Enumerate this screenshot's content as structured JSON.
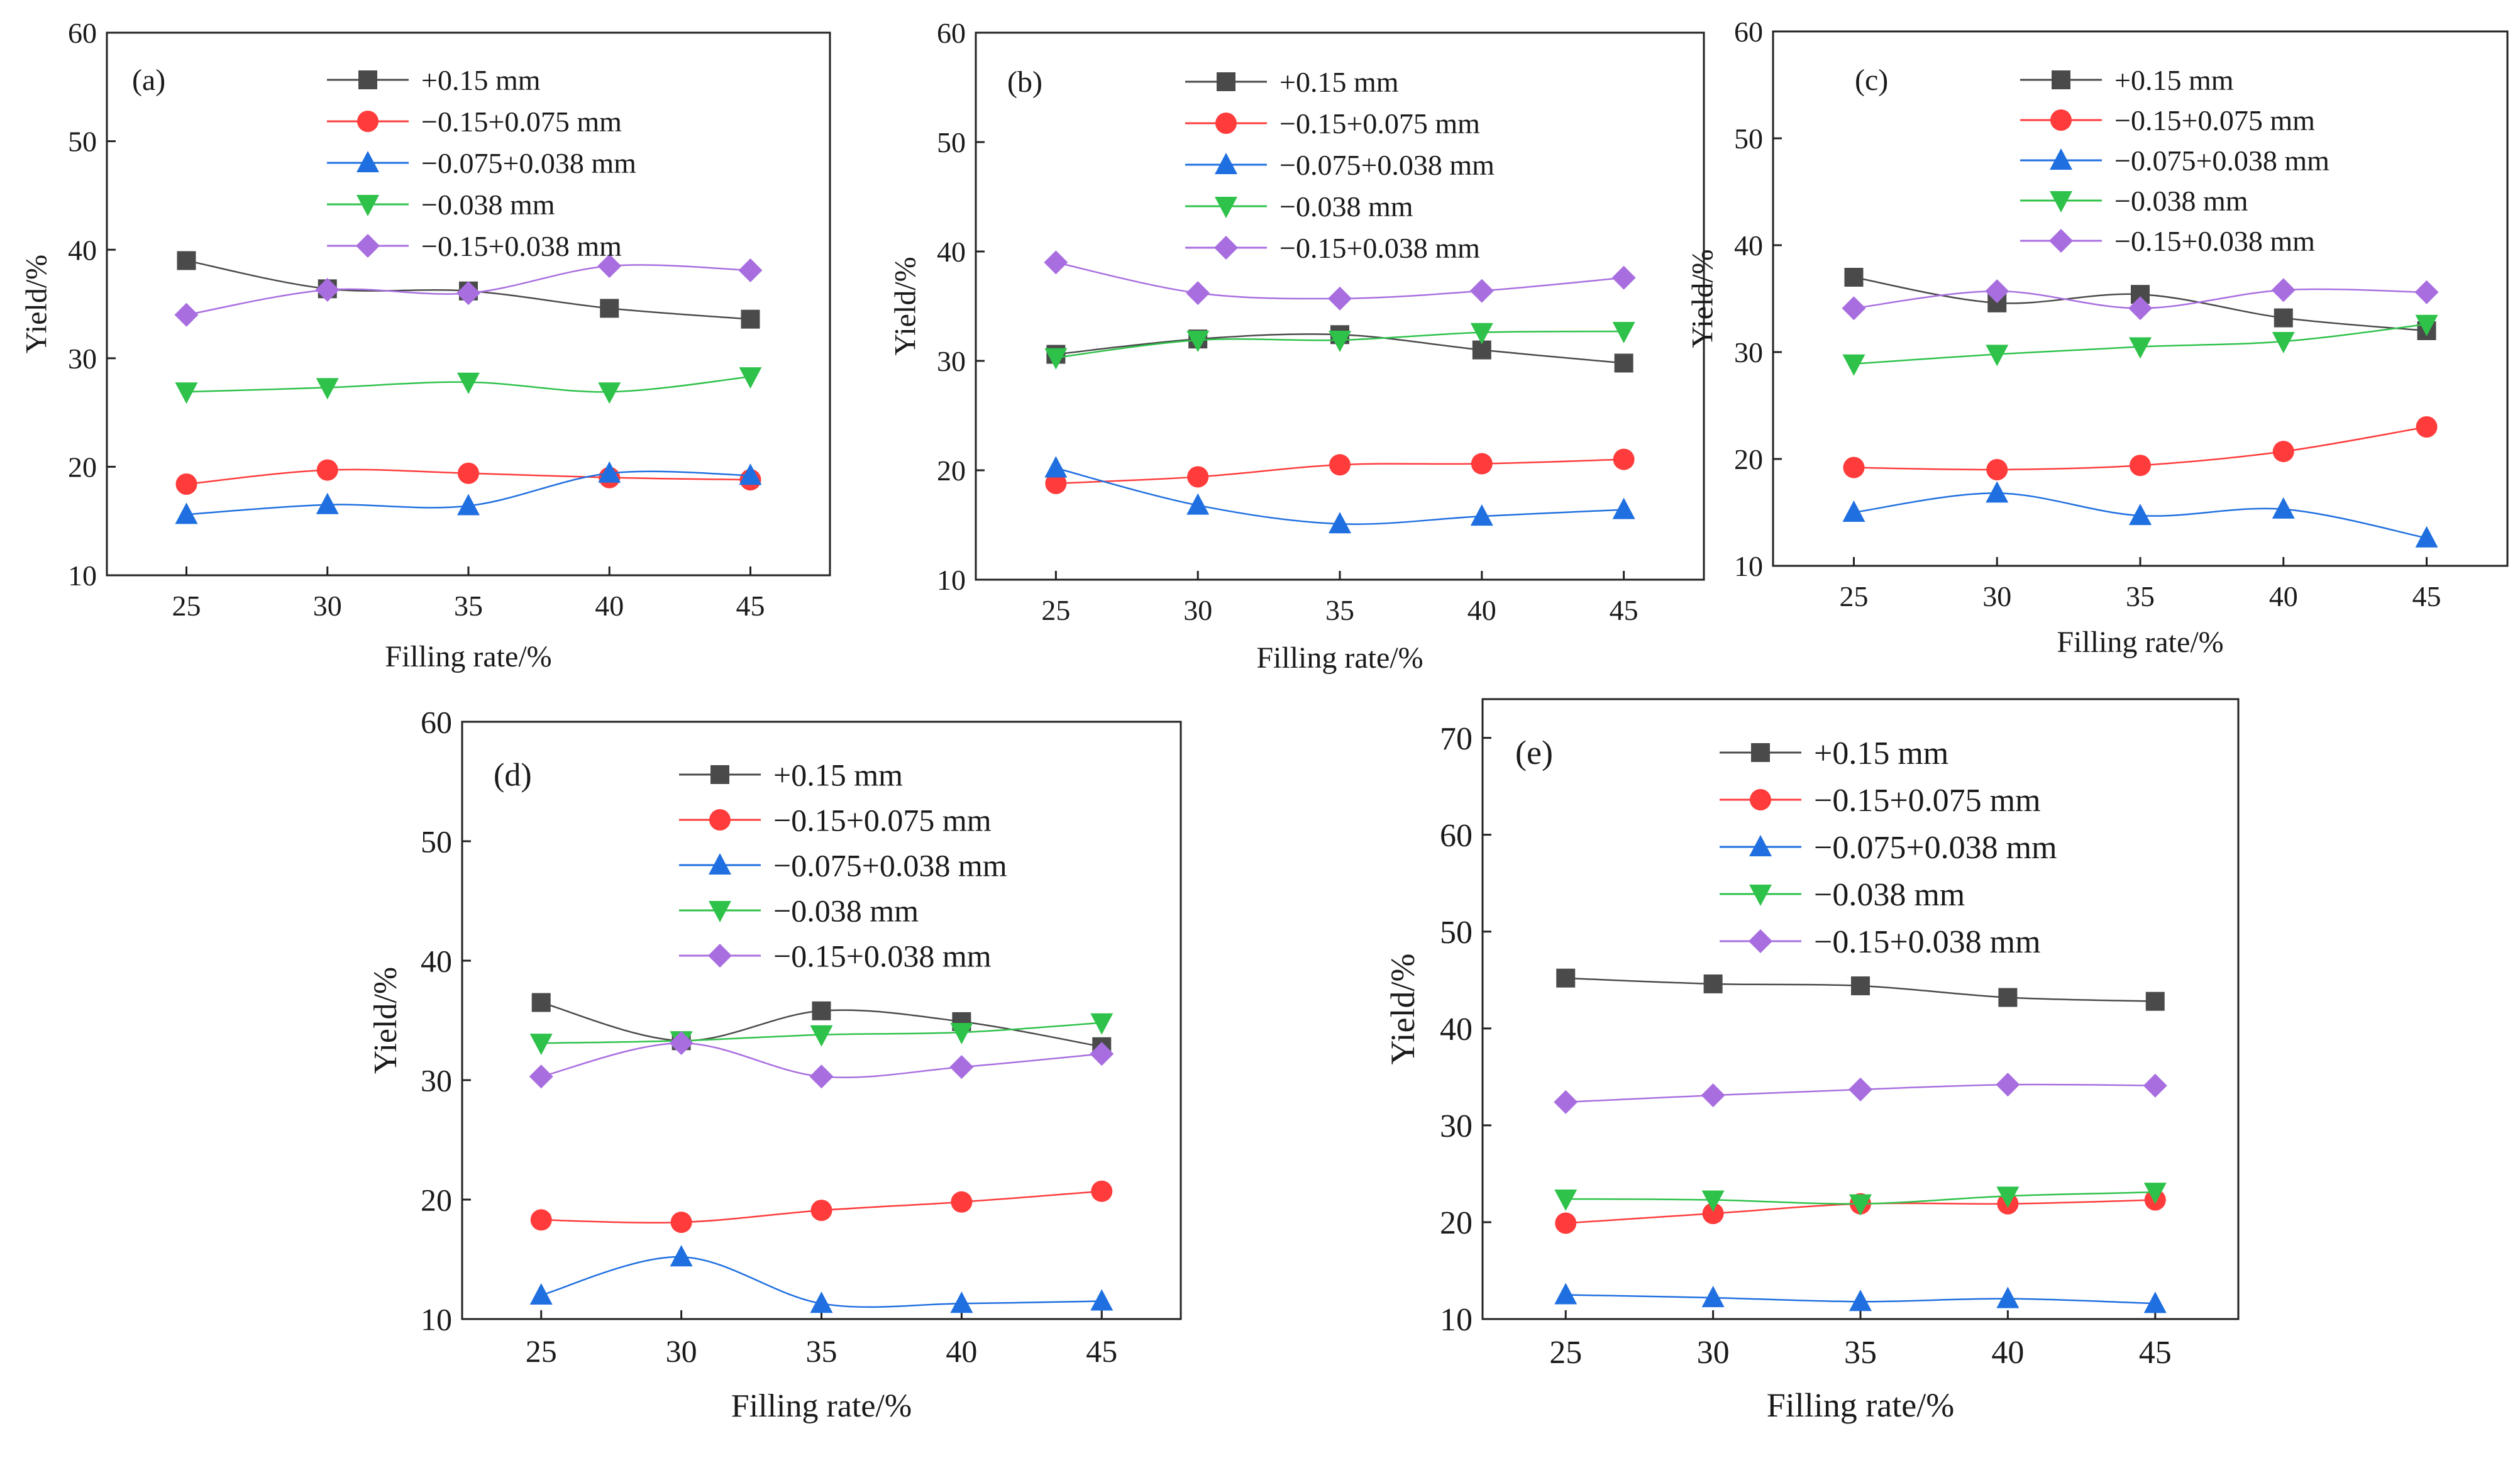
{
  "figure": {
    "panels": [
      "(a)",
      "(b)",
      "(c)",
      "(d)",
      "(e)"
    ]
  },
  "series_styles": [
    {
      "name": "+0.15 mm",
      "color": "#4a4a4a",
      "marker": "square"
    },
    {
      "name": "−0.15+0.075 mm",
      "color": "#ff3b3b",
      "marker": "circle"
    },
    {
      "name": "−0.075+0.038 mm",
      "color": "#1f6fe0",
      "marker": "triangle-up"
    },
    {
      "name": "−0.038 mm",
      "color": "#2ec24a",
      "marker": "triangle-down"
    },
    {
      "name": "−0.15+0.038 mm",
      "color": "#a86ee0",
      "marker": "diamond"
    }
  ],
  "chart_data": [
    {
      "type": "line",
      "panel_label": "(a)",
      "xlabel": "Filling rate/%",
      "ylabel": "Yield/%",
      "x": [
        25,
        30,
        35,
        40,
        45
      ],
      "xticks": [
        "25",
        "30",
        "35",
        "40",
        "45"
      ],
      "ylim": [
        10,
        60
      ],
      "yticks": [
        "10",
        "20",
        "30",
        "40",
        "50",
        "60"
      ],
      "legend": "top-right",
      "series": [
        {
          "name": "+0.15 mm",
          "values": [
            39.0,
            36.4,
            36.2,
            34.6,
            33.6
          ]
        },
        {
          "name": "−0.15+0.075 mm",
          "values": [
            18.4,
            19.7,
            19.4,
            19.0,
            18.8
          ]
        },
        {
          "name": "−0.075+0.038 mm",
          "values": [
            15.6,
            16.5,
            16.4,
            19.4,
            19.2
          ]
        },
        {
          "name": "−0.038 mm",
          "values": [
            26.9,
            27.3,
            27.8,
            26.9,
            28.3
          ]
        },
        {
          "name": "−0.15+0.038 mm",
          "values": [
            34.0,
            36.3,
            36.0,
            38.5,
            38.1
          ]
        }
      ]
    },
    {
      "type": "line",
      "panel_label": "(b)",
      "xlabel": "Filling rate/%",
      "ylabel": "Yield/%",
      "x": [
        25,
        30,
        35,
        40,
        45
      ],
      "xticks": [
        "25",
        "30",
        "35",
        "40",
        "45"
      ],
      "ylim": [
        10,
        60
      ],
      "yticks": [
        "10",
        "20",
        "30",
        "40",
        "50",
        "60"
      ],
      "legend": "top-right",
      "series": [
        {
          "name": "+0.15 mm",
          "values": [
            30.6,
            32.0,
            32.4,
            31.0,
            29.8
          ]
        },
        {
          "name": "−0.15+0.075 mm",
          "values": [
            18.8,
            19.4,
            20.5,
            20.6,
            21.0
          ]
        },
        {
          "name": "−0.075+0.038 mm",
          "values": [
            20.2,
            16.8,
            15.1,
            15.8,
            16.4
          ]
        },
        {
          "name": "−0.038 mm",
          "values": [
            30.3,
            31.9,
            31.9,
            32.6,
            32.7
          ]
        },
        {
          "name": "−0.15+0.038 mm",
          "values": [
            39.0,
            36.2,
            35.7,
            36.4,
            37.6
          ]
        }
      ]
    },
    {
      "type": "line",
      "panel_label": "(c)",
      "xlabel": "Filling rate/%",
      "ylabel": "Yield/%",
      "x": [
        25,
        30,
        35,
        40,
        45
      ],
      "xticks": [
        "25",
        "30",
        "35",
        "40",
        "45"
      ],
      "ylim": [
        10,
        60
      ],
      "yticks": [
        "10",
        "20",
        "30",
        "40",
        "50",
        "60"
      ],
      "legend": "top-right",
      "series": [
        {
          "name": "+0.15 mm",
          "values": [
            37.0,
            34.6,
            35.4,
            33.2,
            32.0
          ]
        },
        {
          "name": "−0.15+0.075 mm",
          "values": [
            19.2,
            19.0,
            19.4,
            20.7,
            23.0
          ]
        },
        {
          "name": "−0.075+0.038 mm",
          "values": [
            15.0,
            16.8,
            14.7,
            15.3,
            12.6
          ]
        },
        {
          "name": "−0.038 mm",
          "values": [
            28.9,
            29.8,
            30.5,
            31.0,
            32.6
          ]
        },
        {
          "name": "−0.15+0.038 mm",
          "values": [
            34.1,
            35.7,
            34.1,
            35.8,
            35.6
          ]
        }
      ]
    },
    {
      "type": "line",
      "panel_label": "(d)",
      "xlabel": "Filling rate/%",
      "ylabel": "Yield/%",
      "x": [
        25,
        30,
        35,
        40,
        45
      ],
      "xticks": [
        "25",
        "30",
        "35",
        "40",
        "45"
      ],
      "ylim": [
        10,
        60
      ],
      "yticks": [
        "10",
        "20",
        "30",
        "40",
        "50",
        "60"
      ],
      "legend": "top-right",
      "series": [
        {
          "name": "+0.15 mm",
          "values": [
            36.5,
            33.3,
            35.8,
            34.9,
            32.8
          ]
        },
        {
          "name": "−0.15+0.075 mm",
          "values": [
            18.3,
            18.1,
            19.1,
            19.8,
            20.7
          ]
        },
        {
          "name": "−0.075+0.038 mm",
          "values": [
            12.0,
            15.2,
            11.3,
            11.3,
            11.5
          ]
        },
        {
          "name": "−0.038 mm",
          "values": [
            33.1,
            33.3,
            33.8,
            34.0,
            34.8
          ]
        },
        {
          "name": "−0.15+0.038 mm",
          "values": [
            30.3,
            33.1,
            30.3,
            31.1,
            32.2
          ]
        }
      ]
    },
    {
      "type": "line",
      "panel_label": "(e)",
      "xlabel": "Filling rate/%",
      "ylabel": "Yield/%",
      "x": [
        25,
        30,
        35,
        40,
        45
      ],
      "xticks": [
        "25",
        "30",
        "35",
        "40",
        "45"
      ],
      "ylim": [
        10,
        74
      ],
      "yticks": [
        "10",
        "20",
        "30",
        "40",
        "50",
        "60",
        "70"
      ],
      "legend": "top-right",
      "series": [
        {
          "name": "+0.15 mm",
          "values": [
            45.2,
            44.6,
            44.4,
            43.2,
            42.8
          ]
        },
        {
          "name": "−0.15+0.075 mm",
          "values": [
            19.9,
            20.9,
            21.9,
            21.9,
            22.3
          ]
        },
        {
          "name": "−0.075+0.038 mm",
          "values": [
            12.5,
            12.2,
            11.8,
            12.1,
            11.6
          ]
        },
        {
          "name": "−0.038 mm",
          "values": [
            22.4,
            22.3,
            21.9,
            22.7,
            23.1
          ]
        },
        {
          "name": "−0.15+0.038 mm",
          "values": [
            32.4,
            33.1,
            33.7,
            34.2,
            34.1
          ]
        }
      ]
    }
  ]
}
